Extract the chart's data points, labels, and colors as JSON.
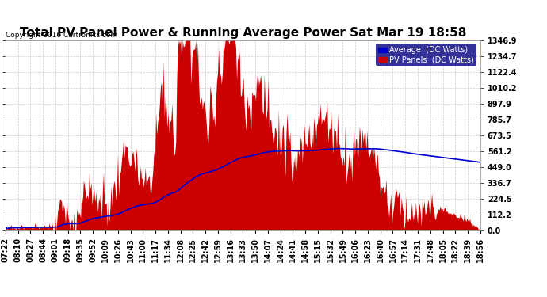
{
  "title": "Total PV Panel Power & Running Average Power Sat Mar 19 18:58",
  "copyright": "Copyright 2016 Cartronics.com",
  "legend_avg": "Average  (DC Watts)",
  "legend_pv": "PV Panels  (DC Watts)",
  "ylabel_values": [
    0.0,
    112.2,
    224.5,
    336.7,
    449.0,
    561.2,
    673.5,
    785.7,
    897.9,
    1010.2,
    1122.4,
    1234.7,
    1346.9
  ],
  "x_labels": [
    "07:22",
    "08:10",
    "08:27",
    "08:44",
    "09:01",
    "09:18",
    "09:35",
    "09:52",
    "10:09",
    "10:26",
    "10:43",
    "11:00",
    "11:17",
    "11:34",
    "12:08",
    "12:25",
    "12:42",
    "12:59",
    "13:16",
    "13:33",
    "13:50",
    "14:07",
    "14:24",
    "14:41",
    "14:58",
    "15:15",
    "15:32",
    "15:49",
    "16:06",
    "16:23",
    "16:40",
    "16:57",
    "17:14",
    "17:31",
    "17:48",
    "18:05",
    "18:22",
    "18:39",
    "18:56"
  ],
  "bg_color": "#ffffff",
  "grid_color": "#cccccc",
  "pv_color": "#cc0000",
  "avg_color": "#0000cc",
  "title_fontsize": 11,
  "axis_fontsize": 7.0
}
